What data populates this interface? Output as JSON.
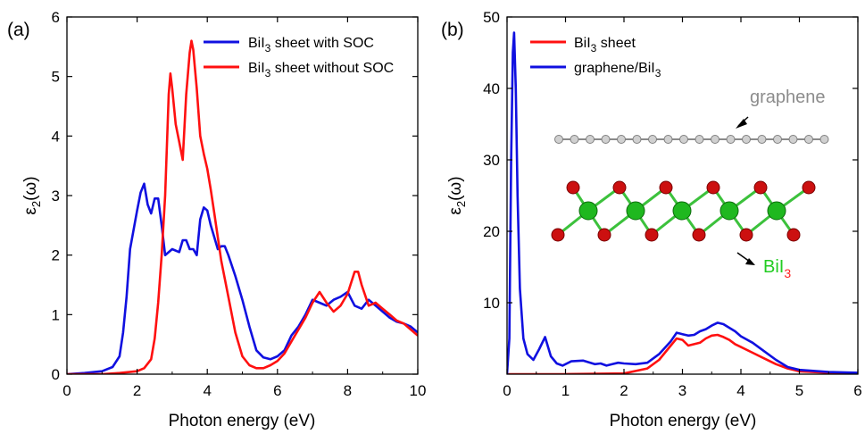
{
  "chart_data": [
    {
      "panel_label": "(a)",
      "type": "line",
      "xlabel": "Photon energy (eV)",
      "ylabel_main": "ε",
      "ylabel_sub": "2",
      "ylabel_tail": "(ω)",
      "xlim": [
        0,
        10
      ],
      "ylim": [
        0,
        6
      ],
      "xticks": [
        0,
        2,
        4,
        6,
        8,
        10
      ],
      "yticks": [
        0,
        1,
        2,
        3,
        4,
        5,
        6
      ],
      "legend_position": "top-right",
      "series": [
        {
          "name_main": "BiI",
          "name_sub": "3",
          "name_tail": " sheet with SOC",
          "color": "#1010e0",
          "x": [
            0,
            0.5,
            1.0,
            1.3,
            1.5,
            1.6,
            1.7,
            1.8,
            2.0,
            2.1,
            2.2,
            2.3,
            2.4,
            2.5,
            2.6,
            2.7,
            2.8,
            3.0,
            3.2,
            3.3,
            3.4,
            3.5,
            3.6,
            3.7,
            3.8,
            3.9,
            4.0,
            4.1,
            4.2,
            4.3,
            4.4,
            4.5,
            4.6,
            4.8,
            5.0,
            5.2,
            5.4,
            5.6,
            5.8,
            6.0,
            6.2,
            6.4,
            6.6,
            6.8,
            7.0,
            7.2,
            7.4,
            7.6,
            7.8,
            8.0,
            8.2,
            8.4,
            8.6,
            8.8,
            9.0,
            9.2,
            9.4,
            9.6,
            9.8,
            10.0
          ],
          "values": [
            0.0,
            0.02,
            0.05,
            0.12,
            0.3,
            0.7,
            1.3,
            2.1,
            2.75,
            3.05,
            3.2,
            2.85,
            2.7,
            2.95,
            2.95,
            2.5,
            2.0,
            2.1,
            2.05,
            2.25,
            2.25,
            2.1,
            2.1,
            2.0,
            2.6,
            2.8,
            2.75,
            2.5,
            2.3,
            2.1,
            2.15,
            2.15,
            2.0,
            1.65,
            1.25,
            0.8,
            0.4,
            0.28,
            0.25,
            0.3,
            0.4,
            0.65,
            0.8,
            1.0,
            1.25,
            1.2,
            1.15,
            1.25,
            1.3,
            1.38,
            1.15,
            1.1,
            1.25,
            1.15,
            1.05,
            0.95,
            0.88,
            0.85,
            0.8,
            0.7
          ]
        },
        {
          "name_main": "BiI",
          "name_sub": "3",
          "name_tail": " sheet without SOC",
          "color": "#ff1010",
          "x": [
            0,
            1.0,
            1.5,
            2.0,
            2.2,
            2.4,
            2.5,
            2.6,
            2.7,
            2.8,
            2.9,
            2.95,
            3.0,
            3.1,
            3.2,
            3.3,
            3.4,
            3.5,
            3.55,
            3.6,
            3.7,
            3.8,
            3.9,
            4.0,
            4.1,
            4.2,
            4.3,
            4.4,
            4.6,
            4.8,
            5.0,
            5.2,
            5.4,
            5.6,
            5.8,
            6.0,
            6.2,
            6.4,
            6.6,
            6.8,
            7.0,
            7.2,
            7.4,
            7.6,
            7.8,
            8.0,
            8.2,
            8.3,
            8.4,
            8.6,
            8.8,
            9.0,
            9.2,
            9.4,
            9.6,
            9.8,
            10.0
          ],
          "values": [
            0.0,
            0.0,
            0.02,
            0.05,
            0.1,
            0.25,
            0.6,
            1.2,
            2.0,
            3.0,
            4.7,
            5.05,
            4.8,
            4.2,
            3.9,
            3.6,
            4.7,
            5.4,
            5.6,
            5.45,
            4.8,
            4.0,
            3.7,
            3.45,
            3.1,
            2.7,
            2.3,
            1.9,
            1.3,
            0.7,
            0.3,
            0.15,
            0.1,
            0.1,
            0.15,
            0.22,
            0.35,
            0.55,
            0.75,
            0.95,
            1.2,
            1.38,
            1.2,
            1.05,
            1.15,
            1.35,
            1.72,
            1.72,
            1.5,
            1.15,
            1.2,
            1.1,
            1.0,
            0.9,
            0.85,
            0.75,
            0.65
          ]
        }
      ]
    },
    {
      "panel_label": "(b)",
      "type": "line",
      "xlabel": "Photon energy (eV)",
      "ylabel_main": "ε",
      "ylabel_sub": "2",
      "ylabel_tail": "(ω)",
      "xlim": [
        0,
        6
      ],
      "ylim": [
        0,
        50
      ],
      "xticks": [
        0,
        1,
        2,
        3,
        4,
        5,
        6
      ],
      "yticks": [
        10,
        20,
        30,
        40,
        50
      ],
      "legend_position": "top-left",
      "series": [
        {
          "name_main": "BiI",
          "name_sub": "3",
          "name_tail": " sheet",
          "color": "#ff1010",
          "x": [
            0,
            1.0,
            2.0,
            2.4,
            2.6,
            2.8,
            2.9,
            3.0,
            3.1,
            3.2,
            3.3,
            3.4,
            3.5,
            3.6,
            3.7,
            3.8,
            3.9,
            4.0,
            4.2,
            4.4,
            4.6,
            4.8,
            5.0,
            5.5,
            6.0
          ],
          "values": [
            0.0,
            0.0,
            0.1,
            0.8,
            2.0,
            4.0,
            5.0,
            4.8,
            4.0,
            4.2,
            4.4,
            5.0,
            5.4,
            5.5,
            5.2,
            4.8,
            4.2,
            3.8,
            3.0,
            2.2,
            1.4,
            0.8,
            0.4,
            0.2,
            0.1
          ]
        },
        {
          "name_main": "graphene/BiI",
          "name_sub": "3",
          "name_tail": "",
          "color": "#1010e0",
          "x": [
            0.0,
            0.04,
            0.07,
            0.1,
            0.12,
            0.15,
            0.18,
            0.22,
            0.28,
            0.35,
            0.45,
            0.55,
            0.65,
            0.75,
            0.85,
            0.95,
            1.1,
            1.3,
            1.5,
            1.6,
            1.7,
            1.8,
            1.9,
            2.0,
            2.2,
            2.4,
            2.6,
            2.8,
            2.9,
            3.0,
            3.1,
            3.2,
            3.3,
            3.4,
            3.5,
            3.6,
            3.7,
            3.8,
            3.9,
            4.0,
            4.2,
            4.4,
            4.6,
            4.8,
            5.0,
            5.5,
            6.0
          ],
          "values": [
            0.0,
            5.0,
            30.0,
            45.0,
            47.8,
            40.0,
            25.0,
            12.0,
            5.0,
            2.8,
            2.0,
            3.5,
            5.2,
            2.5,
            1.5,
            1.2,
            1.8,
            1.9,
            1.4,
            1.5,
            1.2,
            1.4,
            1.6,
            1.5,
            1.4,
            1.6,
            2.8,
            4.6,
            5.8,
            5.6,
            5.4,
            5.5,
            6.0,
            6.3,
            6.8,
            7.2,
            7.0,
            6.5,
            6.0,
            5.3,
            4.4,
            3.2,
            2.0,
            1.0,
            0.6,
            0.3,
            0.2
          ]
        }
      ],
      "annotations": {
        "graphene_label": "graphene",
        "biI3_main": "BiI",
        "biI3_sub": "3"
      }
    }
  ]
}
